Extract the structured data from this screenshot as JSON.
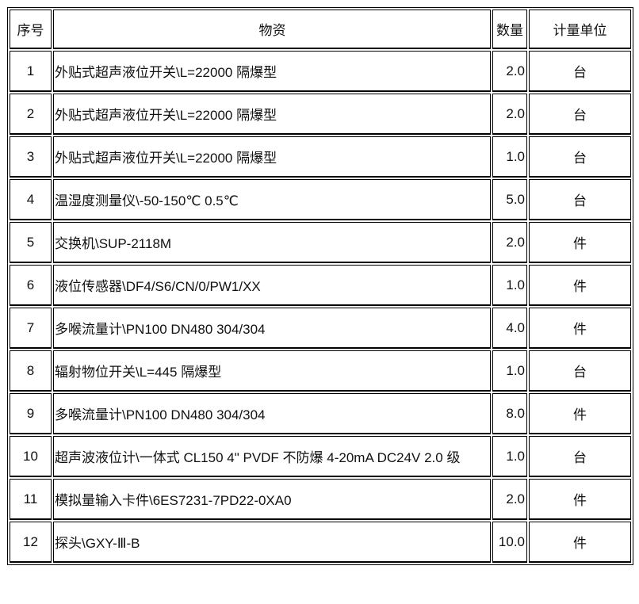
{
  "headers": {
    "index": "序号",
    "material": "物资",
    "quantity": "数量",
    "unit": "计量单位"
  },
  "rows": [
    {
      "index": "1",
      "material": "外贴式超声液位开关\\L=22000  隔爆型",
      "quantity": "2.0",
      "unit": "台"
    },
    {
      "index": "2",
      "material": "外贴式超声液位开关\\L=22000  隔爆型",
      "quantity": "2.0",
      "unit": "台"
    },
    {
      "index": "3",
      "material": "外贴式超声液位开关\\L=22000  隔爆型",
      "quantity": "1.0",
      "unit": "台"
    },
    {
      "index": "4",
      "material": "温湿度测量仪\\-50-150℃  0.5℃",
      "quantity": "5.0",
      "unit": "台"
    },
    {
      "index": "5",
      "material": "交换机\\SUP-2118M",
      "quantity": "2.0",
      "unit": "件"
    },
    {
      "index": "6",
      "material": "液位传感器\\DF4/S6/CN/0/PW1/XX",
      "quantity": "1.0",
      "unit": "件"
    },
    {
      "index": "7",
      "material": "多喉流量计\\PN100 DN480 304/304",
      "quantity": "4.0",
      "unit": "件"
    },
    {
      "index": "8",
      "material": "辐射物位开关\\L=445  隔爆型",
      "quantity": "1.0",
      "unit": "台"
    },
    {
      "index": "9",
      "material": "多喉流量计\\PN100 DN480 304/304",
      "quantity": "8.0",
      "unit": "件"
    },
    {
      "index": "10",
      "material": "超声波液位计\\一体式  CL150 4\" PVDF  不防爆  4-20mA DC24V 2.0 级",
      "quantity": "1.0",
      "unit": "台"
    },
    {
      "index": "11",
      "material": "模拟量输入卡件\\6ES7231-7PD22-0XA0",
      "quantity": "2.0",
      "unit": "件"
    },
    {
      "index": "12",
      "material": "探头\\GXY-Ⅲ-B",
      "quantity": "10.0",
      "unit": "件"
    }
  ]
}
